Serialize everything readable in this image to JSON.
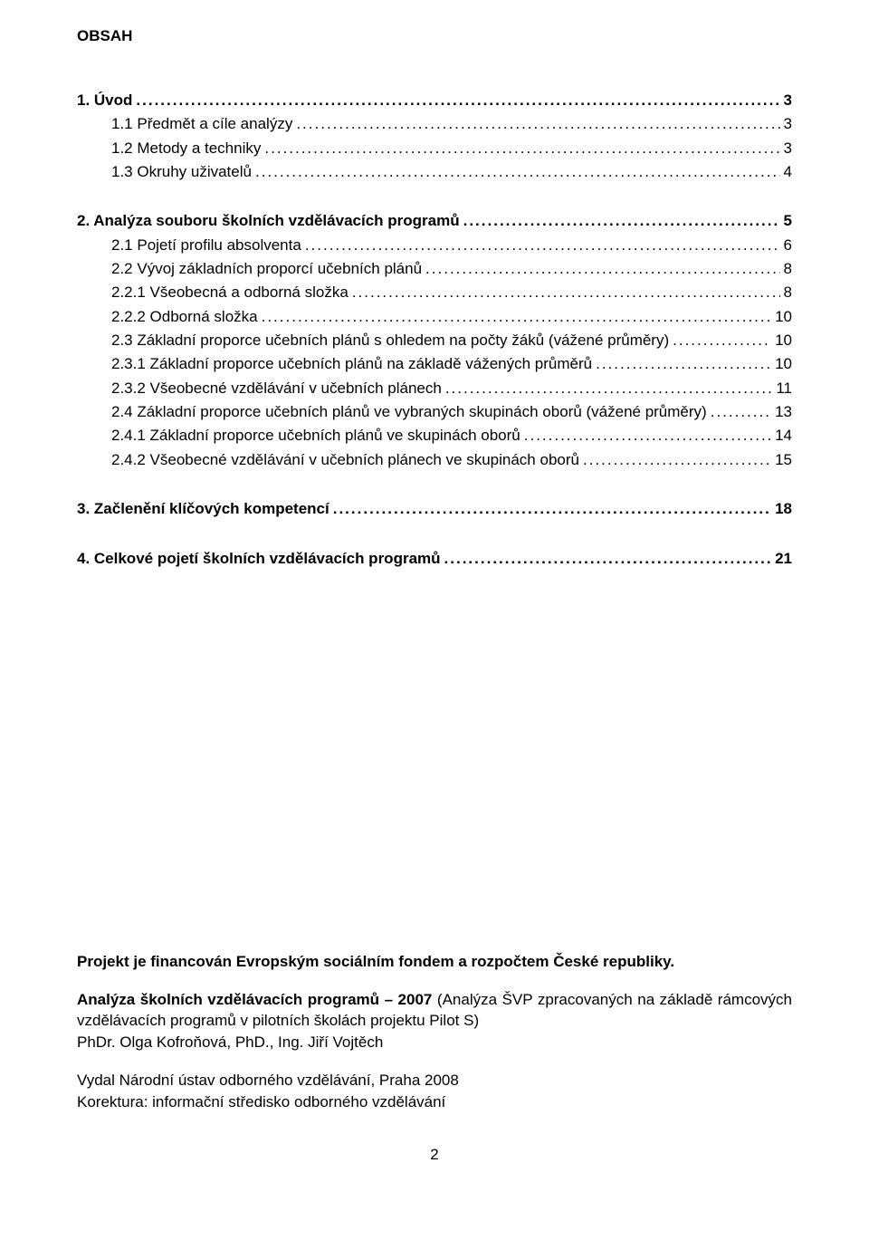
{
  "heading": "OBSAH",
  "toc": [
    {
      "label": "1. Úvod",
      "page": "3",
      "bold": true,
      "indent": 0
    },
    {
      "label": "1.1 Předmět a cíle analýzy",
      "page": "3",
      "bold": false,
      "indent": 1
    },
    {
      "label": "1.2 Metody a techniky",
      "page": "3",
      "bold": false,
      "indent": 1
    },
    {
      "label": "1.3 Okruhy uživatelů",
      "page": "4",
      "bold": false,
      "indent": 1
    },
    {
      "gap": true
    },
    {
      "label": "2. Analýza souboru školních vzdělávacích programů",
      "page": "5",
      "bold": true,
      "indent": 0
    },
    {
      "label": "2.1 Pojetí profilu absolventa",
      "page": "6",
      "bold": false,
      "indent": 1
    },
    {
      "label": "2.2 Vývoj základních proporcí učebních plánů",
      "page": "8",
      "bold": false,
      "indent": 1
    },
    {
      "label": "2.2.1 Všeobecná a odborná složka",
      "page": "8",
      "bold": false,
      "indent": 2
    },
    {
      "label": "2.2.2 Odborná složka",
      "page": "10",
      "bold": false,
      "indent": 2
    },
    {
      "label": "2.3 Základní proporce učebních plánů s ohledem na počty žáků (vážené průměry)",
      "page": "10",
      "bold": false,
      "indent": 1
    },
    {
      "label": "2.3.1 Základní proporce učebních plánů na základě vážených průměrů",
      "page": "10",
      "bold": false,
      "indent": 2
    },
    {
      "label": "2.3.2 Všeobecné vzdělávání v učebních plánech",
      "page": "11",
      "bold": false,
      "indent": 2
    },
    {
      "label": "2.4  Základní proporce učebních plánů ve vybraných skupinách oborů  (vážené průměry)",
      "page": "13",
      "bold": false,
      "indent": 1
    },
    {
      "label": "2.4.1 Základní proporce učebních plánů ve skupinách oborů",
      "page": "14",
      "bold": false,
      "indent": 2
    },
    {
      "label": "2.4.2 Všeobecné vzdělávání v učebních plánech ve skupinách oborů",
      "page": "15",
      "bold": false,
      "indent": 2
    },
    {
      "gap": true
    },
    {
      "label": "3. Začlenění klíčových kompetencí",
      "page": "18",
      "bold": true,
      "indent": 0
    },
    {
      "gap": true
    },
    {
      "label": "4. Celkové pojetí školních vzdělávacích programů",
      "page": "21",
      "bold": true,
      "indent": 0
    }
  ],
  "footer": {
    "line1_bold": "Projekt je financován Evropským sociálním fondem a rozpočtem České republiky.",
    "line2_bold": "Analýza školních vzdělávacích programů – 2007",
    "line2_rest": " (Analýza ŠVP zpracovaných na základě rámcových vzdělávacích programů v pilotních školách projektu Pilot S)",
    "line3": "PhDr. Olga Kofroňová, PhD., Ing. Jiří Vojtěch",
    "line4": "Vydal Národní ústav odborného vzdělávání, Praha 2008",
    "line5": "Korektura: informační středisko odborného vzdělávání"
  },
  "page_number": "2"
}
